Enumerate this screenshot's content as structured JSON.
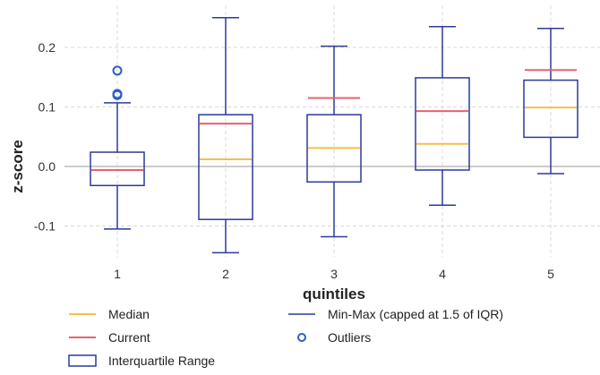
{
  "chart_data": {
    "type": "box",
    "xlabel": "quintiles",
    "ylabel": "z-score",
    "categories": [
      "1",
      "2",
      "3",
      "4",
      "5"
    ],
    "ylim": [
      -0.125,
      0.255
    ],
    "yticks": [
      -0.1,
      0.0,
      0.1,
      0.2
    ],
    "ytick_labels": [
      "-0.1",
      "0.0",
      "0.1",
      "0.2"
    ],
    "grid": true,
    "colors": {
      "box": "#2b3a9c",
      "whisker": "#2b3a9c",
      "median": "#f5c048",
      "current": "#e8616c",
      "outlier": "#2b5fc8",
      "grid": "#d9d9d9",
      "zero_line": "#cccccc"
    },
    "boxes": [
      {
        "category": "1",
        "whisker_low": -0.105,
        "q1": -0.032,
        "median": -0.006,
        "q3": 0.024,
        "whisker_high": 0.107,
        "current": -0.006,
        "outliers": [
          0.12,
          0.122,
          0.161
        ]
      },
      {
        "category": "2",
        "whisker_low": -0.145,
        "q1": -0.089,
        "median": 0.012,
        "q3": 0.087,
        "whisker_high": 0.25,
        "current": 0.072,
        "outliers": []
      },
      {
        "category": "3",
        "whisker_low": -0.118,
        "q1": -0.026,
        "median": 0.031,
        "q3": 0.087,
        "whisker_high": 0.202,
        "current": 0.115,
        "outliers": []
      },
      {
        "category": "4",
        "whisker_low": -0.065,
        "q1": -0.006,
        "median": 0.038,
        "q3": 0.149,
        "whisker_high": 0.235,
        "current": 0.093,
        "outliers": []
      },
      {
        "category": "5",
        "whisker_low": -0.012,
        "q1": 0.049,
        "median": 0.099,
        "q3": 0.145,
        "whisker_high": 0.232,
        "current": 0.162,
        "outliers": []
      }
    ],
    "legend": {
      "placement": "bottom",
      "items": [
        {
          "key": "median",
          "label": "Median"
        },
        {
          "key": "current",
          "label": "Current"
        },
        {
          "key": "iqr",
          "label": "Interquartile Range"
        },
        {
          "key": "minmax",
          "label": "Min-Max (capped at 1.5 of IQR)"
        },
        {
          "key": "outliers",
          "label": "Outliers"
        }
      ]
    }
  }
}
